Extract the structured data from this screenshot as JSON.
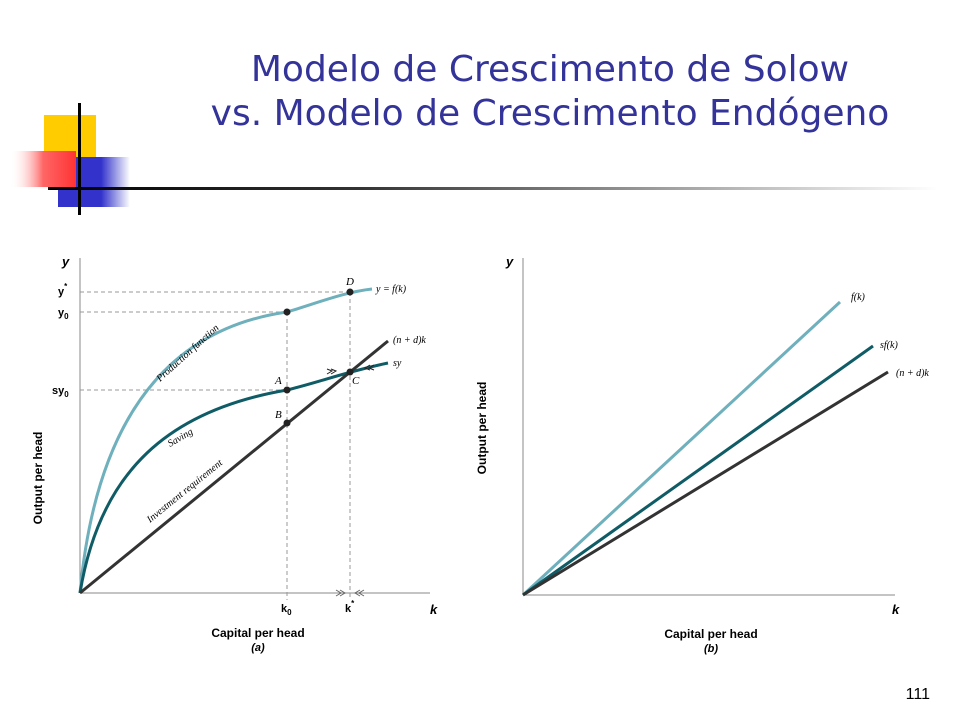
{
  "title": {
    "line1": "Modelo de Crescimento de Solow",
    "line2": "vs. Modelo de Crescimento Endógeno"
  },
  "page_number": "111",
  "colors": {
    "title": "#333399",
    "production": "#6fb0bd",
    "saving": "#0f5c66",
    "investment": "#333333"
  },
  "panel_a": {
    "y_axis_letter": "y",
    "x_axis_letter": "k",
    "y_axis_label": "Output per head",
    "x_axis_label": "Capital per head",
    "x_axis_sub": "(a)",
    "y_ticks": {
      "ystar": "y",
      "y0": "y",
      "sy0": "sy"
    },
    "x_ticks": {
      "k0": "k",
      "kstar": "k"
    },
    "curves": {
      "production": "Production function",
      "saving": "Saving",
      "investment": "Investment requirement"
    },
    "curve_end_labels": {
      "fk": "y = f(k)",
      "ndk": "(n + d)k",
      "sy": "sy"
    },
    "points": {
      "A": "A",
      "B": "B",
      "C": "C",
      "D": "D"
    }
  },
  "panel_b": {
    "y_axis_letter": "y",
    "x_axis_letter": "k",
    "y_axis_label": "Output per head",
    "x_axis_label": "Capital per head",
    "x_axis_sub": "(b)",
    "line_labels": {
      "fk": "f(k)",
      "sfk": "sf(k)",
      "ndk": "(n + d)k"
    }
  }
}
